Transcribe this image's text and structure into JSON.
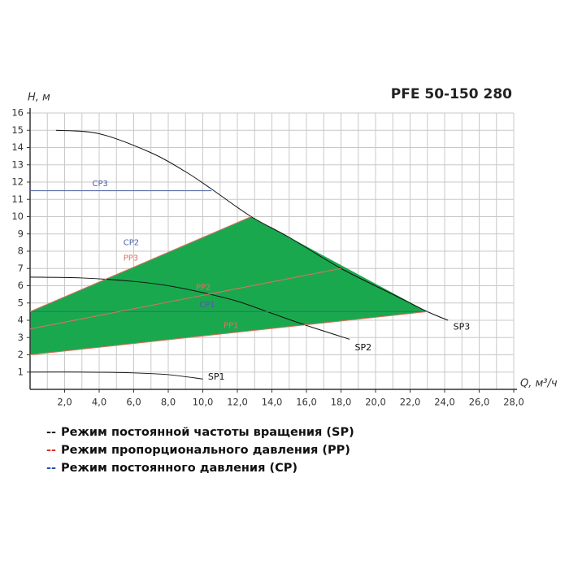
{
  "chart_data": {
    "type": "line",
    "title": "PFE 50-150 280",
    "y_label": "H, м",
    "x_label": "Q, м³/ч",
    "xlim": [
      0,
      28
    ],
    "ylim": [
      0,
      16
    ],
    "xticks": [
      {
        "value": 2,
        "label": "2,0"
      },
      {
        "value": 4,
        "label": "4,0"
      },
      {
        "value": 6,
        "label": "6,0"
      },
      {
        "value": 8,
        "label": "8,0"
      },
      {
        "value": 10,
        "label": "10,0"
      },
      {
        "value": 12,
        "label": "12,0"
      },
      {
        "value": 14,
        "label": "14,0"
      },
      {
        "value": 16,
        "label": "16,0"
      },
      {
        "value": 18,
        "label": "18,0"
      },
      {
        "value": 20,
        "label": "20,0"
      },
      {
        "value": 22,
        "label": "22,0"
      },
      {
        "value": 24,
        "label": "24,0"
      },
      {
        "value": 26,
        "label": "26,0"
      },
      {
        "value": 28,
        "label": "28,0"
      }
    ],
    "yticks": [
      1,
      2,
      3,
      4,
      5,
      6,
      7,
      8,
      9,
      10,
      11,
      12,
      13,
      14,
      15,
      16
    ],
    "grid": true,
    "region": {
      "color": "#1aa84e",
      "x": [
        0,
        12.8,
        23,
        0
      ],
      "y": [
        4.5,
        10,
        4.5,
        2
      ]
    },
    "series": [
      {
        "name": "SP3",
        "color": "#111111",
        "x": [
          1.5,
          4,
          7,
          9,
          10.5,
          12.8,
          15,
          18,
          21,
          23,
          24.2
        ],
        "y": [
          15,
          14.8,
          13.7,
          12.6,
          11.6,
          10,
          8.8,
          7,
          5.5,
          4.5,
          4
        ]
      },
      {
        "name": "SP2",
        "color": "#111111",
        "x": [
          0,
          3,
          6,
          8,
          10,
          12,
          14,
          16,
          18.5
        ],
        "y": [
          6.5,
          6.45,
          6.25,
          6,
          5.6,
          5.1,
          4.4,
          3.7,
          2.9
        ]
      },
      {
        "name": "SP1",
        "color": "#111111",
        "x": [
          0,
          3,
          6,
          8,
          10
        ],
        "y": [
          1,
          1,
          0.95,
          0.85,
          0.6
        ]
      },
      {
        "name": "CP3",
        "color": "#4a5fa0",
        "x": [
          0,
          10.5
        ],
        "y": [
          11.5,
          11.5
        ]
      },
      {
        "name": "CP2",
        "color": "#4a5fa0",
        "x": [
          0,
          23
        ],
        "y": [
          4.5,
          4.5
        ]
      },
      {
        "name": "CP1",
        "color": "#4a5fa0",
        "x": [
          0,
          23
        ],
        "y": [
          4.5,
          4.5
        ]
      },
      {
        "name": "PP3",
        "color": "#e07060",
        "x": [
          0,
          12.8
        ],
        "y": [
          4.5,
          10
        ]
      },
      {
        "name": "PP2",
        "color": "#e07060",
        "x": [
          0,
          18
        ],
        "y": [
          3.5,
          7
        ]
      },
      {
        "name": "PP1",
        "color": "#e07060",
        "x": [
          0,
          23
        ],
        "y": [
          2,
          4.5
        ]
      }
    ],
    "legend": [
      {
        "marker": "--",
        "color": "#111111",
        "text": "Режим постоянной частоты вращения (SP)"
      },
      {
        "marker": "--",
        "color": "#d9302a",
        "text": "Режим пропорционального давления (PP)"
      },
      {
        "marker": "--",
        "color": "#2a4fa8",
        "text": "Режим постоянного давления (CP)"
      }
    ]
  }
}
